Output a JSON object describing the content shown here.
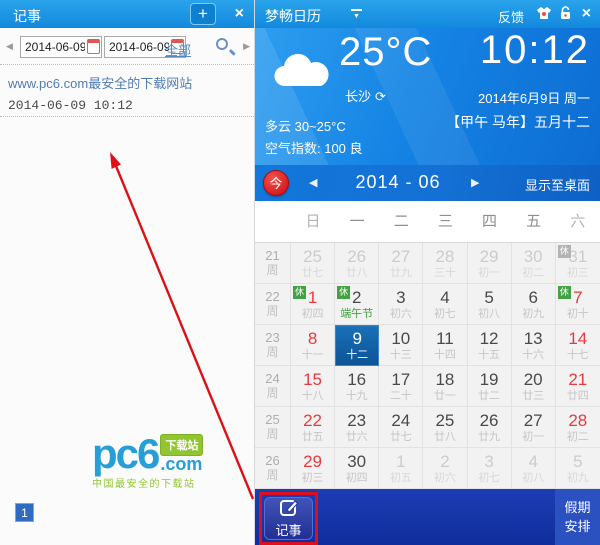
{
  "icons": {
    "close": "×",
    "plus": "+",
    "prev": "◀",
    "next": "▶",
    "refresh": "⟳",
    "dropdown": "▼"
  },
  "notes_panel": {
    "title": "记事",
    "date_from": "2014-06-09",
    "date_to": "2014-06-09",
    "all_link": "全部",
    "note": {
      "title": "www.pc6.com最安全的下载网站",
      "time": "2014-06-09 10:12"
    },
    "page_badge": "1",
    "logo": {
      "main": "pc6",
      "badge": "下载站",
      "com": ".com",
      "tagline": "中国最安全的下载站"
    }
  },
  "calendar_panel": {
    "title": "梦畅日历",
    "feedback_label": "反馈",
    "weather": {
      "temp": "25°C",
      "city": "长沙",
      "clock": "10:12",
      "date": "2014年6月9日 周一",
      "lunar_date": "【甲午 马年】五月十二",
      "condition": "多云 30~25°C",
      "air_quality": "空气指数: 100 良"
    },
    "month_nav": {
      "today": "今",
      "year_month": "2014  -  06",
      "show_desktop": "显示至桌面"
    },
    "weekdays": [
      "日",
      "一",
      "二",
      "三",
      "四",
      "五",
      "六"
    ],
    "week_suffix": "周",
    "weeks": [
      {
        "num": "21",
        "days": [
          {
            "d": "25",
            "l": "廿七",
            "t": "out"
          },
          {
            "d": "26",
            "l": "廿八",
            "t": "out"
          },
          {
            "d": "27",
            "l": "廿九",
            "t": "out"
          },
          {
            "d": "28",
            "l": "三十",
            "t": "out"
          },
          {
            "d": "29",
            "l": "初一",
            "t": "out"
          },
          {
            "d": "30",
            "l": "初二",
            "t": "out"
          },
          {
            "d": "31",
            "l": "初三",
            "t": "out",
            "badge": "休",
            "badge_gray": true
          }
        ]
      },
      {
        "num": "22",
        "days": [
          {
            "d": "1",
            "l": "初四",
            "t": "red",
            "badge": "休"
          },
          {
            "d": "2",
            "l": "端午节",
            "t": "normal",
            "badge": "休",
            "festival": true
          },
          {
            "d": "3",
            "l": "初六",
            "t": "normal"
          },
          {
            "d": "4",
            "l": "初七",
            "t": "normal"
          },
          {
            "d": "5",
            "l": "初八",
            "t": "normal"
          },
          {
            "d": "6",
            "l": "初九",
            "t": "normal"
          },
          {
            "d": "7",
            "l": "初十",
            "t": "red",
            "badge": "休"
          }
        ]
      },
      {
        "num": "23",
        "days": [
          {
            "d": "8",
            "l": "十一",
            "t": "red"
          },
          {
            "d": "9",
            "l": "十二",
            "t": "selected"
          },
          {
            "d": "10",
            "l": "十三",
            "t": "normal"
          },
          {
            "d": "11",
            "l": "十四",
            "t": "normal"
          },
          {
            "d": "12",
            "l": "十五",
            "t": "normal"
          },
          {
            "d": "13",
            "l": "十六",
            "t": "normal"
          },
          {
            "d": "14",
            "l": "十七",
            "t": "red"
          }
        ]
      },
      {
        "num": "24",
        "days": [
          {
            "d": "15",
            "l": "十八",
            "t": "red"
          },
          {
            "d": "16",
            "l": "十九",
            "t": "normal"
          },
          {
            "d": "17",
            "l": "二十",
            "t": "normal"
          },
          {
            "d": "18",
            "l": "廿一",
            "t": "normal"
          },
          {
            "d": "19",
            "l": "廿二",
            "t": "normal"
          },
          {
            "d": "20",
            "l": "廿三",
            "t": "normal"
          },
          {
            "d": "21",
            "l": "廿四",
            "t": "red"
          }
        ]
      },
      {
        "num": "25",
        "days": [
          {
            "d": "22",
            "l": "廿五",
            "t": "red"
          },
          {
            "d": "23",
            "l": "廿六",
            "t": "normal"
          },
          {
            "d": "24",
            "l": "廿七",
            "t": "normal"
          },
          {
            "d": "25",
            "l": "廿八",
            "t": "normal"
          },
          {
            "d": "26",
            "l": "廿九",
            "t": "normal"
          },
          {
            "d": "27",
            "l": "初一",
            "t": "normal"
          },
          {
            "d": "28",
            "l": "初二",
            "t": "red"
          }
        ]
      },
      {
        "num": "26",
        "days": [
          {
            "d": "29",
            "l": "初三",
            "t": "red"
          },
          {
            "d": "30",
            "l": "初四",
            "t": "normal"
          },
          {
            "d": "1",
            "l": "初五",
            "t": "out"
          },
          {
            "d": "2",
            "l": "初六",
            "t": "out"
          },
          {
            "d": "3",
            "l": "初七",
            "t": "out"
          },
          {
            "d": "4",
            "l": "初八",
            "t": "out"
          },
          {
            "d": "5",
            "l": "初九",
            "t": "out"
          }
        ]
      }
    ],
    "bottom": {
      "note_button": "记事",
      "holiday_line1": "假期",
      "holiday_line2": "安排"
    }
  },
  "colors": {
    "titlebar_blue": "#1389dd",
    "month_blue": "#1070d8",
    "bottom_blue": "#1433a8",
    "selected_blue": "#11568f",
    "holiday_green": "#44a244",
    "weekend_red": "#e83a3c",
    "annotation_red": "#dd0f1d"
  }
}
